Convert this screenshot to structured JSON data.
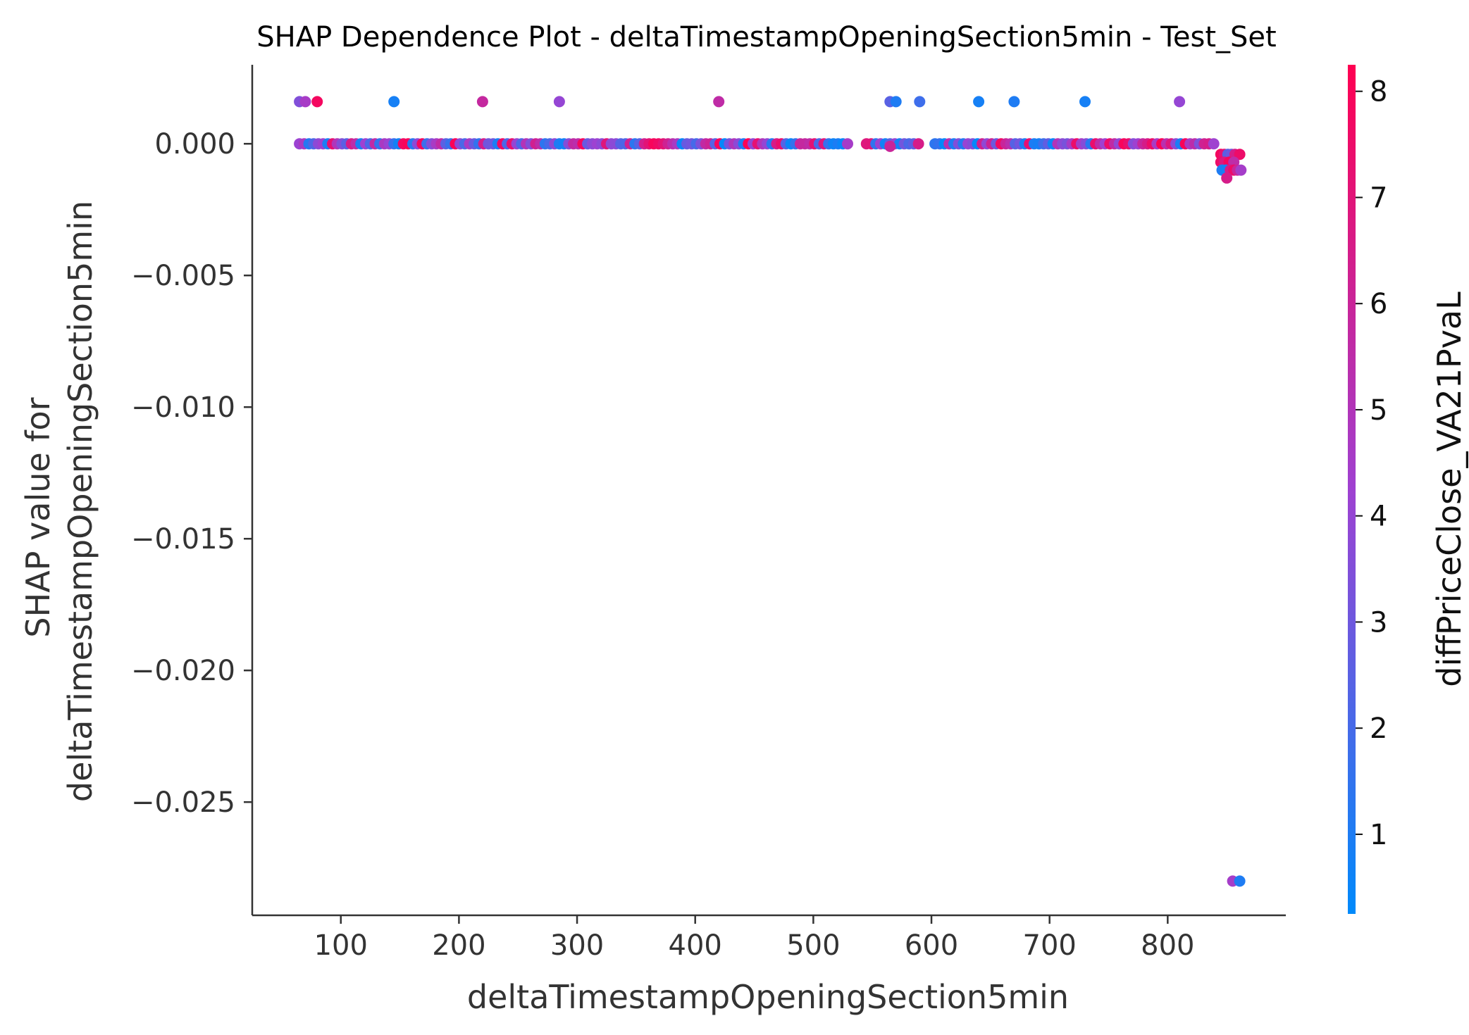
{
  "chart_data": {
    "type": "scatter",
    "title": "SHAP Dependence Plot - deltaTimestampOpeningSection5min - Test_Set",
    "xlabel": "deltaTimestampOpeningSection5min",
    "ylabel_line1": "SHAP value for",
    "ylabel_line2": "deltaTimestampOpeningSection5min",
    "xlim": [
      25,
      900
    ],
    "ylim": [
      -0.0293,
      0.003
    ],
    "xticks": [
      100,
      200,
      300,
      400,
      500,
      600,
      700,
      800
    ],
    "yticks": [
      0.0,
      -0.005,
      -0.01,
      -0.015,
      -0.02,
      -0.025
    ],
    "xtick_labels": [
      "100",
      "200",
      "300",
      "400",
      "500",
      "600",
      "700",
      "800"
    ],
    "ytick_labels": [
      "0.000",
      "−0.005",
      "−0.010",
      "−0.015",
      "−0.020",
      "−0.025"
    ],
    "colorbar": {
      "label": "diffPriceClose_VA21PvaL",
      "range": [
        0.25,
        8.25
      ],
      "ticks": [
        1,
        2,
        3,
        4,
        5,
        6,
        7,
        8
      ],
      "tick_labels": [
        "1",
        "2",
        "3",
        "4",
        "5",
        "6",
        "7",
        "8"
      ],
      "low_color": "#008afb",
      "high_color": "#ff0051",
      "mid_color": "#9f41d1"
    },
    "spines": "left-bottom",
    "grid": false,
    "main_band": {
      "y": 0.0,
      "segments": [
        [
          65,
          532
        ],
        [
          545,
          590
        ],
        [
          603,
          842
        ]
      ],
      "step": 4
    },
    "series": [
      {
        "points": [
          {
            "x": 65,
            "y": 0.0016,
            "c": 3.5
          },
          {
            "x": 70,
            "y": 0.0016,
            "c": 4.6
          },
          {
            "x": 80,
            "y": 0.0016,
            "c": 7.8
          },
          {
            "x": 145,
            "y": 0.0016,
            "c": 0.8
          },
          {
            "x": 220,
            "y": 0.0016,
            "c": 5.8
          },
          {
            "x": 285,
            "y": 0.0016,
            "c": 4.0
          },
          {
            "x": 420,
            "y": 0.0016,
            "c": 5.6
          },
          {
            "x": 565,
            "y": 0.0016,
            "c": 2.5
          },
          {
            "x": 570,
            "y": 0.0016,
            "c": 1.0
          },
          {
            "x": 590,
            "y": 0.0016,
            "c": 1.8
          },
          {
            "x": 640,
            "y": 0.0016,
            "c": 0.8
          },
          {
            "x": 670,
            "y": 0.0016,
            "c": 1.0
          },
          {
            "x": 730,
            "y": 0.0016,
            "c": 0.8
          },
          {
            "x": 810,
            "y": 0.0016,
            "c": 4.0
          },
          {
            "x": 565,
            "y": -0.0001,
            "c": 6.0
          },
          {
            "x": 845,
            "y": -0.0004,
            "c": 7.8
          },
          {
            "x": 848,
            "y": -0.0004,
            "c": 7.2
          },
          {
            "x": 851,
            "y": -0.0004,
            "c": 2.5
          },
          {
            "x": 854,
            "y": -0.0004,
            "c": 3.0
          },
          {
            "x": 857,
            "y": -0.0004,
            "c": 6.5
          },
          {
            "x": 861,
            "y": -0.0004,
            "c": 7.5
          },
          {
            "x": 845,
            "y": -0.0007,
            "c": 7.5
          },
          {
            "x": 848,
            "y": -0.0007,
            "c": 6.8
          },
          {
            "x": 852,
            "y": -0.0007,
            "c": 7.9
          },
          {
            "x": 856,
            "y": -0.0007,
            "c": 5.5
          },
          {
            "x": 846,
            "y": -0.001,
            "c": 1.0
          },
          {
            "x": 849,
            "y": -0.001,
            "c": 0.8
          },
          {
            "x": 853,
            "y": -0.001,
            "c": 6.5
          },
          {
            "x": 856,
            "y": -0.001,
            "c": 7.5
          },
          {
            "x": 859,
            "y": -0.001,
            "c": 6.0
          },
          {
            "x": 862,
            "y": -0.001,
            "c": 4.5
          },
          {
            "x": 850,
            "y": -0.0013,
            "c": 6.5
          },
          {
            "x": 855,
            "y": -0.028,
            "c": 4.5
          },
          {
            "x": 861,
            "y": -0.028,
            "c": 1.0
          }
        ]
      }
    ]
  }
}
